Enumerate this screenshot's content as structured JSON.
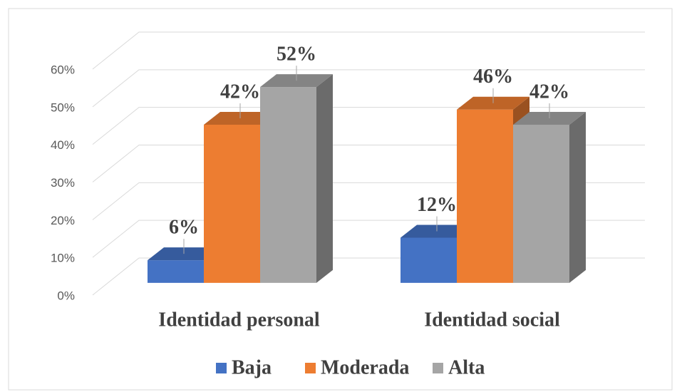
{
  "chart_data": {
    "type": "bar3d",
    "categories": [
      "Identidad personal",
      "Identidad social"
    ],
    "series": [
      {
        "name": "Baja",
        "color": "#4472c4",
        "values": [
          6,
          12
        ],
        "value_labels": [
          "6%",
          "12%"
        ]
      },
      {
        "name": "Moderada",
        "color": "#ed7d31",
        "values": [
          42,
          46
        ],
        "value_labels": [
          "42%",
          "46%"
        ]
      },
      {
        "name": "Alta",
        "color": "#a5a5a5",
        "values": [
          52,
          42
        ],
        "value_labels": [
          "52%",
          "42%"
        ]
      }
    ],
    "ylim": [
      0,
      60
    ],
    "yticks": [
      {
        "value": 0,
        "label": "0%"
      },
      {
        "value": 10,
        "label": "10%"
      },
      {
        "value": 20,
        "label": "20%"
      },
      {
        "value": 30,
        "label": "30%"
      },
      {
        "value": 40,
        "label": "40%"
      },
      {
        "value": 50,
        "label": "50%"
      },
      {
        "value": 60,
        "label": "60%"
      }
    ],
    "grid": true,
    "legend": "bottom"
  }
}
